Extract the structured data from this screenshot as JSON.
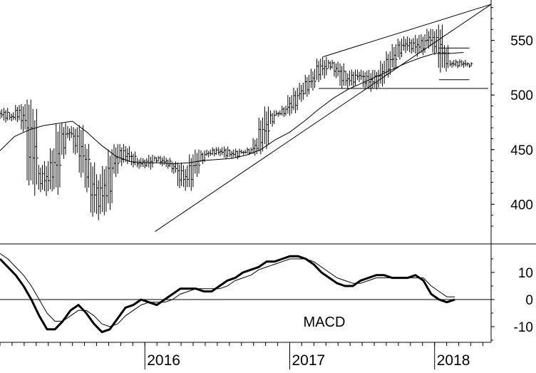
{
  "chart_data": [
    {
      "type": "ohlc",
      "panel": "price",
      "title": "",
      "xlabel": "",
      "ylabel": "",
      "ylim": [
        365,
        585
      ],
      "y_ticks": [
        400,
        450,
        500,
        550
      ],
      "y_tick_labels": [
        "400",
        "450",
        "500",
        "550"
      ],
      "grid": false,
      "x_tick_labels": [
        "2016",
        "2017",
        "2018"
      ],
      "x_tick_years": [
        2016,
        2017,
        2018
      ],
      "x_range": [
        2015.0,
        2018.39
      ],
      "series": [
        {
          "kind": "weekly-bars",
          "points": [
            [
              2015.0,
              485
            ],
            [
              2015.04,
              480
            ],
            [
              2015.08,
              478
            ],
            [
              2015.12,
              482
            ],
            [
              2015.16,
              488
            ],
            [
              2015.2,
              470
            ],
            [
              2015.24,
              425
            ],
            [
              2015.28,
              432
            ],
            [
              2015.32,
              415
            ],
            [
              2015.36,
              420
            ],
            [
              2015.4,
              448
            ],
            [
              2015.44,
              462
            ],
            [
              2015.48,
              468
            ],
            [
              2015.52,
              465
            ],
            [
              2015.56,
              448
            ],
            [
              2015.6,
              432
            ],
            [
              2015.64,
              418
            ],
            [
              2015.68,
              395
            ],
            [
              2015.72,
              405
            ],
            [
              2015.76,
              430
            ],
            [
              2015.8,
              440
            ],
            [
              2015.84,
              450
            ],
            [
              2015.88,
              445
            ],
            [
              2015.92,
              440
            ],
            [
              2015.96,
              437
            ],
            [
              2016.0,
              435
            ],
            [
              2016.04,
              440
            ],
            [
              2016.08,
              442
            ],
            [
              2016.12,
              440
            ],
            [
              2016.16,
              437
            ],
            [
              2016.2,
              435
            ],
            [
              2016.24,
              430
            ],
            [
              2016.28,
              418
            ],
            [
              2016.32,
              430
            ],
            [
              2016.36,
              440
            ],
            [
              2016.4,
              445
            ],
            [
              2016.44,
              446
            ],
            [
              2016.48,
              448
            ],
            [
              2016.52,
              450
            ],
            [
              2016.56,
              446
            ],
            [
              2016.6,
              444
            ],
            [
              2016.64,
              448
            ],
            [
              2016.68,
              448
            ],
            [
              2016.72,
              447
            ],
            [
              2016.76,
              450
            ],
            [
              2016.8,
              458
            ],
            [
              2016.84,
              475
            ],
            [
              2016.88,
              482
            ],
            [
              2016.92,
              482
            ],
            [
              2016.96,
              484
            ],
            [
              2017.0,
              488
            ],
            [
              2017.04,
              497
            ],
            [
              2017.08,
              502
            ],
            [
              2017.12,
              508
            ],
            [
              2017.16,
              515
            ],
            [
              2017.2,
              520
            ],
            [
              2017.24,
              530
            ],
            [
              2017.28,
              528
            ],
            [
              2017.32,
              525
            ],
            [
              2017.36,
              518
            ],
            [
              2017.4,
              510
            ],
            [
              2017.44,
              515
            ],
            [
              2017.48,
              520
            ],
            [
              2017.52,
              518
            ],
            [
              2017.56,
              508
            ],
            [
              2017.6,
              512
            ],
            [
              2017.64,
              520
            ],
            [
              2017.68,
              527
            ],
            [
              2017.72,
              536
            ],
            [
              2017.76,
              542
            ],
            [
              2017.8,
              548
            ],
            [
              2017.84,
              550
            ],
            [
              2017.88,
              540
            ],
            [
              2017.92,
              546
            ],
            [
              2017.96,
              552
            ],
            [
              2018.0,
              557
            ],
            [
              2018.04,
              540
            ],
            [
              2018.08,
              528
            ],
            [
              2018.12,
              527
            ],
            [
              2018.16,
              530
            ],
            [
              2018.2,
              528
            ],
            [
              2018.24,
              527
            ]
          ]
        },
        {
          "kind": "moving-average",
          "points": [
            [
              2015.0,
              449
            ],
            [
              2015.1,
              462
            ],
            [
              2015.2,
              468
            ],
            [
              2015.3,
              472
            ],
            [
              2015.4,
              474
            ],
            [
              2015.5,
              476
            ],
            [
              2015.6,
              466
            ],
            [
              2015.7,
              454
            ],
            [
              2015.8,
              444
            ],
            [
              2015.9,
              439
            ],
            [
              2016.0,
              438
            ],
            [
              2016.1,
              438
            ],
            [
              2016.2,
              437
            ],
            [
              2016.3,
              438
            ],
            [
              2016.4,
              440
            ],
            [
              2016.5,
              441
            ],
            [
              2016.6,
              442
            ],
            [
              2016.7,
              445
            ],
            [
              2016.8,
              450
            ],
            [
              2016.9,
              459
            ],
            [
              2017.0,
              466
            ],
            [
              2017.1,
              476
            ],
            [
              2017.2,
              487
            ],
            [
              2017.3,
              497
            ],
            [
              2017.4,
              505
            ],
            [
              2017.5,
              511
            ],
            [
              2017.6,
              517
            ],
            [
              2017.7,
              523
            ],
            [
              2017.8,
              529
            ],
            [
              2017.9,
              534
            ],
            [
              2018.0,
              538
            ],
            [
              2018.1,
              538
            ],
            [
              2018.2,
              539
            ]
          ]
        }
      ],
      "trendlines": [
        {
          "name": "support",
          "from": [
            2016.07,
            375
          ],
          "to": [
            2018.39,
            583
          ]
        },
        {
          "name": "resistance",
          "from": [
            2017.23,
            535
          ],
          "to": [
            2018.39,
            583
          ]
        },
        {
          "name": "horizontal",
          "from": [
            2017.2,
            506
          ],
          "to": [
            2018.37,
            506
          ]
        }
      ],
      "range_box": {
        "from": [
          2018.03,
          514
        ],
        "to": [
          2018.24,
          543
        ]
      }
    },
    {
      "type": "line",
      "panel": "indicator",
      "title": "MACD",
      "xlabel": "",
      "ylabel": "",
      "ylim": [
        -16,
        19
      ],
      "y_ticks": [
        -10,
        0,
        10
      ],
      "y_tick_labels": [
        "-10",
        "0",
        "10"
      ],
      "zero_line": 0,
      "series": [
        {
          "line": "bold",
          "points": [
            [
              2015.0,
              15
            ],
            [
              2015.05,
              12
            ],
            [
              2015.1,
              9
            ],
            [
              2015.15,
              5
            ],
            [
              2015.2,
              0
            ],
            [
              2015.25,
              -6
            ],
            [
              2015.3,
              -11
            ],
            [
              2015.35,
              -11
            ],
            [
              2015.4,
              -8
            ],
            [
              2015.45,
              -4
            ],
            [
              2015.5,
              -2
            ],
            [
              2015.55,
              -5
            ],
            [
              2015.6,
              -9
            ],
            [
              2015.65,
              -12
            ],
            [
              2015.7,
              -11
            ],
            [
              2015.75,
              -7
            ],
            [
              2015.8,
              -3
            ],
            [
              2015.85,
              -2
            ],
            [
              2015.9,
              0
            ],
            [
              2015.95,
              -1
            ],
            [
              2016.0,
              -2
            ],
            [
              2016.05,
              0
            ],
            [
              2016.1,
              2
            ],
            [
              2016.15,
              4
            ],
            [
              2016.2,
              4
            ],
            [
              2016.25,
              4
            ],
            [
              2016.3,
              3
            ],
            [
              2016.35,
              3
            ],
            [
              2016.4,
              5
            ],
            [
              2016.45,
              7
            ],
            [
              2016.5,
              8
            ],
            [
              2016.55,
              10
            ],
            [
              2016.6,
              11
            ],
            [
              2016.65,
              12
            ],
            [
              2016.7,
              14
            ],
            [
              2016.75,
              14
            ],
            [
              2016.8,
              15
            ],
            [
              2016.85,
              16
            ],
            [
              2016.9,
              16
            ],
            [
              2016.95,
              15
            ],
            [
              2017.0,
              13
            ],
            [
              2017.05,
              10
            ],
            [
              2017.1,
              8
            ],
            [
              2017.15,
              6
            ],
            [
              2017.2,
              5
            ],
            [
              2017.25,
              5
            ],
            [
              2017.3,
              7
            ],
            [
              2017.35,
              8
            ],
            [
              2017.4,
              9
            ],
            [
              2017.45,
              9
            ],
            [
              2017.5,
              8
            ],
            [
              2017.55,
              8
            ],
            [
              2017.6,
              8
            ],
            [
              2017.65,
              9
            ],
            [
              2017.7,
              7
            ],
            [
              2017.75,
              2
            ],
            [
              2017.8,
              0
            ],
            [
              2017.85,
              -1
            ],
            [
              2017.9,
              0
            ]
          ]
        },
        {
          "line": "thin",
          "points": [
            [
              2015.0,
              17
            ],
            [
              2015.05,
              15
            ],
            [
              2015.1,
              12
            ],
            [
              2015.15,
              9
            ],
            [
              2015.2,
              5
            ],
            [
              2015.25,
              0
            ],
            [
              2015.3,
              -5
            ],
            [
              2015.35,
              -8
            ],
            [
              2015.4,
              -8
            ],
            [
              2015.45,
              -6
            ],
            [
              2015.5,
              -4
            ],
            [
              2015.55,
              -4
            ],
            [
              2015.6,
              -6
            ],
            [
              2015.65,
              -9
            ],
            [
              2015.7,
              -10
            ],
            [
              2015.75,
              -9
            ],
            [
              2015.8,
              -6
            ],
            [
              2015.85,
              -4
            ],
            [
              2015.9,
              -2
            ],
            [
              2015.95,
              -1
            ],
            [
              2016.0,
              -1
            ],
            [
              2016.05,
              -1
            ],
            [
              2016.1,
              0
            ],
            [
              2016.15,
              2
            ],
            [
              2016.2,
              3
            ],
            [
              2016.25,
              4
            ],
            [
              2016.3,
              4
            ],
            [
              2016.35,
              4
            ],
            [
              2016.4,
              4
            ],
            [
              2016.45,
              5
            ],
            [
              2016.5,
              7
            ],
            [
              2016.55,
              8
            ],
            [
              2016.6,
              9
            ],
            [
              2016.65,
              11
            ],
            [
              2016.7,
              12
            ],
            [
              2016.75,
              13
            ],
            [
              2016.8,
              14
            ],
            [
              2016.85,
              15
            ],
            [
              2016.9,
              15
            ],
            [
              2016.95,
              15
            ],
            [
              2017.0,
              14
            ],
            [
              2017.05,
              12
            ],
            [
              2017.1,
              10
            ],
            [
              2017.15,
              8
            ],
            [
              2017.2,
              7
            ],
            [
              2017.25,
              6
            ],
            [
              2017.3,
              6
            ],
            [
              2017.35,
              7
            ],
            [
              2017.4,
              8
            ],
            [
              2017.45,
              8
            ],
            [
              2017.5,
              8
            ],
            [
              2017.55,
              8
            ],
            [
              2017.6,
              8
            ],
            [
              2017.65,
              8
            ],
            [
              2017.7,
              8
            ],
            [
              2017.75,
              5
            ],
            [
              2017.8,
              3
            ],
            [
              2017.85,
              1
            ],
            [
              2017.9,
              1
            ]
          ]
        }
      ]
    }
  ]
}
